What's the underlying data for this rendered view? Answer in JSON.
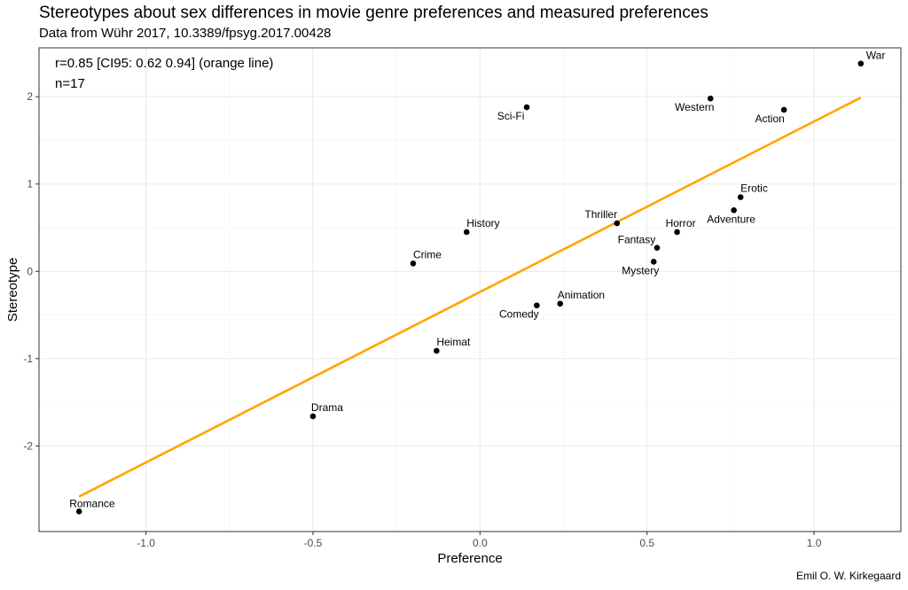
{
  "title": "Stereotypes about sex differences in movie genre preferences and measured preferences",
  "subtitle": "Data from Wühr 2017, 10.3389/fpsyg.2017.00428",
  "caption": "Emil O. W. Kirkegaard",
  "chart_data": {
    "type": "scatter",
    "xlabel": "Preference",
    "ylabel": "Stereotype",
    "xlim": [
      -1.32,
      1.26
    ],
    "ylim": [
      -2.98,
      2.56
    ],
    "x_ticks": [
      -1.0,
      -0.5,
      0.0,
      0.5,
      1.0
    ],
    "x_tick_labels": [
      "-1.0",
      "-0.5",
      "0.0",
      "0.5",
      "1.0"
    ],
    "y_ticks": [
      -2,
      -1,
      0,
      1,
      2
    ],
    "y_tick_labels": [
      "-2",
      "-1",
      "0",
      "1",
      "2"
    ],
    "grid": true,
    "points": [
      {
        "label": "War",
        "x": 1.14,
        "y": 2.38
      },
      {
        "label": "Western",
        "x": 0.69,
        "y": 1.98
      },
      {
        "label": "Action",
        "x": 0.91,
        "y": 1.85
      },
      {
        "label": "Sci-Fi",
        "x": 0.14,
        "y": 1.88
      },
      {
        "label": "Erotic",
        "x": 0.78,
        "y": 0.85
      },
      {
        "label": "Adventure",
        "x": 0.76,
        "y": 0.7
      },
      {
        "label": "Thriller",
        "x": 0.41,
        "y": 0.55
      },
      {
        "label": "Horror",
        "x": 0.59,
        "y": 0.45
      },
      {
        "label": "History",
        "x": -0.04,
        "y": 0.45
      },
      {
        "label": "Fantasy",
        "x": 0.53,
        "y": 0.27
      },
      {
        "label": "Mystery",
        "x": 0.52,
        "y": 0.11
      },
      {
        "label": "Crime",
        "x": -0.2,
        "y": 0.09
      },
      {
        "label": "Animation",
        "x": 0.24,
        "y": -0.37
      },
      {
        "label": "Comedy",
        "x": 0.17,
        "y": -0.39
      },
      {
        "label": "Heimat",
        "x": -0.13,
        "y": -0.91
      },
      {
        "label": "Drama",
        "x": -0.5,
        "y": -1.66
      },
      {
        "label": "Romance",
        "x": -1.2,
        "y": -2.75
      }
    ],
    "fit_line": {
      "x": [
        -1.2,
        1.14
      ],
      "y": [
        -2.58,
        1.99
      ],
      "color": "#FFA500"
    },
    "annotations": [
      "r=0.85 [CI95: 0.62 0.94] (orange line)",
      "n=17"
    ]
  }
}
